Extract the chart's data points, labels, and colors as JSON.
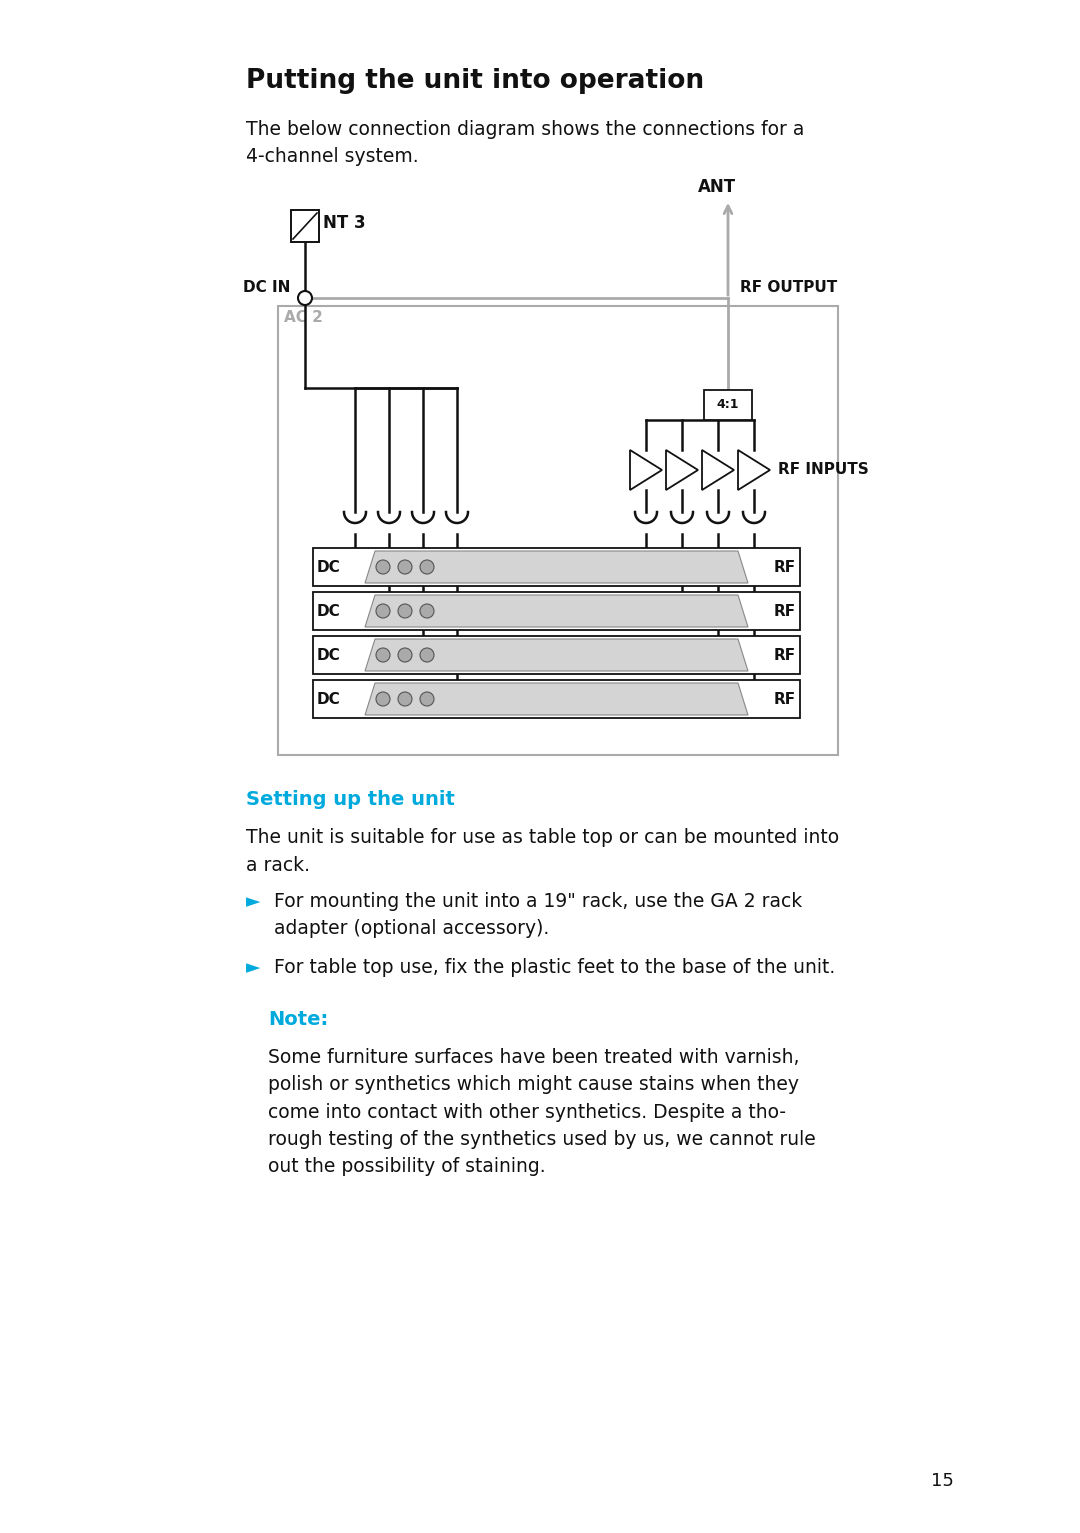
{
  "bg_color": "#ffffff",
  "title": "Putting the unit into operation",
  "title_fontsize": 19,
  "intro_text": "The below connection diagram shows the connections for a\n4-channel system.",
  "intro_fontsize": 13.5,
  "section_heading": "Setting up the unit",
  "section_heading_color": "#00aadd",
  "section_heading_fontsize": 14,
  "body1_line1": "The unit is suitable for use as table top or can be mounted into",
  "body1_line2": "a rack.",
  "body1_fontsize": 13.5,
  "bullet1_arrow": "►",
  "bullet1_text": "For mounting the unit into a 19\" rack, use the GA 2 rack\nadapter (optional accessory).",
  "bullet2_arrow": "►",
  "bullet2_text": "For table top use, fix the plastic feet to the base of the unit.",
  "bullet_fontsize": 13.5,
  "bullet_color": "#00aadd",
  "note_heading": "Note:",
  "note_heading_color": "#00aadd",
  "note_heading_fontsize": 14,
  "note_body": "Some furniture surfaces have been treated with varnish,\npolish or synthetics which might cause stains when they\ncome into contact with other synthetics. Despite a tho-\nrough testing of the synthetics used by us, we cannot rule\nout the possibility of staining.",
  "note_body_fontsize": 13.5,
  "page_num": "15",
  "page_num_fontsize": 13,
  "gray_color": "#aaaaaa",
  "black_color": "#111111"
}
